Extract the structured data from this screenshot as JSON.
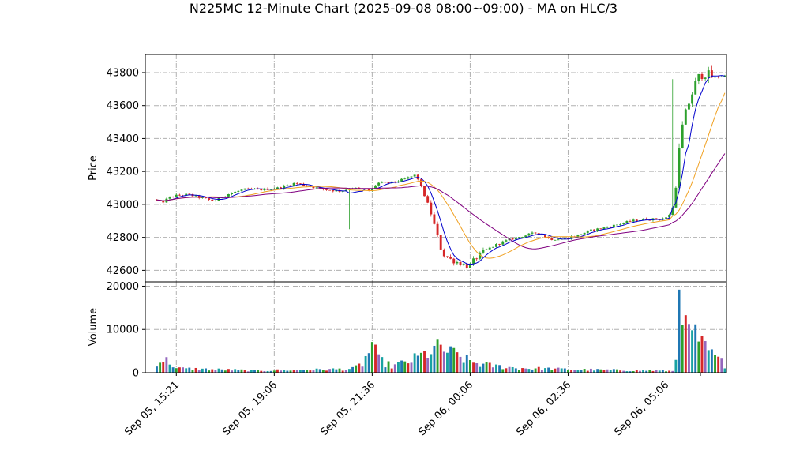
{
  "chart_data": {
    "type": "candlestick",
    "title": "N225MC 12-Minute Chart (2025-09-08 08:00~09:00) - MA on HLC/3",
    "price_panel": {
      "ylabel": "Price",
      "ylim": [
        42530,
        43910
      ],
      "yticks": [
        42600,
        42800,
        43000,
        43200,
        43400,
        43600,
        43800
      ]
    },
    "volume_panel": {
      "ylabel": "Volume",
      "ylim": [
        0,
        21000
      ],
      "yticks": [
        0,
        10000,
        20000
      ]
    },
    "x_range": [
      -3.5,
      174.5
    ],
    "x_ticks": [
      {
        "index": 6,
        "label": "Sep 05, 15:21"
      },
      {
        "index": 36,
        "label": "Sep 05, 19:06"
      },
      {
        "index": 66,
        "label": "Sep 05, 21:36"
      },
      {
        "index": 96,
        "label": "Sep 06, 00:06"
      },
      {
        "index": 126,
        "label": "Sep 06, 02:36"
      },
      {
        "index": 156,
        "label": "Sep 06, 05:06"
      },
      {
        "index": 180,
        "label": ""
      }
    ],
    "grid": true,
    "colors": {
      "up": "#2ca02c",
      "down": "#d62728",
      "ma_fast": "#0000cc",
      "ma_mid": "#f0a020",
      "ma_slow": "#800080",
      "volume_palette": [
        "#1f77b4",
        "#2ca02c",
        "#d62728",
        "#9467bd",
        "#17a2a2"
      ]
    },
    "price_anchors": [
      [
        0,
        43030
      ],
      [
        2,
        43010
      ],
      [
        5,
        43050
      ],
      [
        10,
        43060
      ],
      [
        14,
        43040
      ],
      [
        18,
        43020
      ],
      [
        22,
        43060
      ],
      [
        27,
        43090
      ],
      [
        33,
        43090
      ],
      [
        38,
        43100
      ],
      [
        43,
        43130
      ],
      [
        47,
        43110
      ],
      [
        52,
        43090
      ],
      [
        57,
        43080
      ],
      [
        60,
        43100
      ],
      [
        64,
        43090
      ],
      [
        66,
        43080
      ],
      [
        68,
        43130
      ],
      [
        72,
        43130
      ],
      [
        76,
        43150
      ],
      [
        80,
        43180
      ],
      [
        84,
        42980
      ],
      [
        88,
        42700
      ],
      [
        91,
        42660
      ],
      [
        94,
        42640
      ],
      [
        96,
        42620
      ],
      [
        98,
        42670
      ],
      [
        101,
        42720
      ],
      [
        105,
        42760
      ],
      [
        109,
        42790
      ],
      [
        113,
        42810
      ],
      [
        117,
        42830
      ],
      [
        121,
        42790
      ],
      [
        125,
        42790
      ],
      [
        129,
        42810
      ],
      [
        133,
        42840
      ],
      [
        138,
        42860
      ],
      [
        142,
        42880
      ],
      [
        146,
        42900
      ],
      [
        150,
        42910
      ],
      [
        154,
        42910
      ],
      [
        157,
        42920
      ],
      [
        159,
        43000
      ],
      [
        161,
        43430
      ],
      [
        163,
        43590
      ],
      [
        166,
        43760
      ],
      [
        168,
        43800
      ],
      [
        171,
        43770
      ],
      [
        174,
        43780
      ]
    ],
    "volume_anchors": [
      [
        0,
        2500
      ],
      [
        2,
        3000
      ],
      [
        4,
        2500
      ],
      [
        6,
        1000
      ],
      [
        10,
        900
      ],
      [
        20,
        700
      ],
      [
        30,
        500
      ],
      [
        40,
        600
      ],
      [
        50,
        700
      ],
      [
        60,
        900
      ],
      [
        63,
        2000
      ],
      [
        66,
        6000
      ],
      [
        68,
        3000
      ],
      [
        72,
        1500
      ],
      [
        77,
        2500
      ],
      [
        80,
        3500
      ],
      [
        84,
        5000
      ],
      [
        87,
        5800
      ],
      [
        90,
        4500
      ],
      [
        93,
        3600
      ],
      [
        96,
        2600
      ],
      [
        100,
        1800
      ],
      [
        110,
        1100
      ],
      [
        120,
        900
      ],
      [
        130,
        700
      ],
      [
        140,
        600
      ],
      [
        150,
        500
      ],
      [
        158,
        400
      ],
      [
        160,
        7500
      ],
      [
        162,
        8000
      ],
      [
        164,
        9800
      ],
      [
        166,
        6500
      ],
      [
        168,
        6200
      ],
      [
        170,
        4000
      ],
      [
        172,
        3000
      ],
      [
        174,
        1800
      ]
    ],
    "volume_spikes": [
      [
        160,
        19200
      ],
      [
        162,
        13300
      ],
      [
        164,
        9800
      ],
      [
        166,
        7200
      ],
      [
        168,
        7300
      ],
      [
        66,
        7100
      ]
    ],
    "wick_spikes": [
      [
        59,
        42850,
        43100
      ],
      [
        163,
        43320,
        43500
      ],
      [
        158,
        43000,
        43760
      ]
    ]
  }
}
